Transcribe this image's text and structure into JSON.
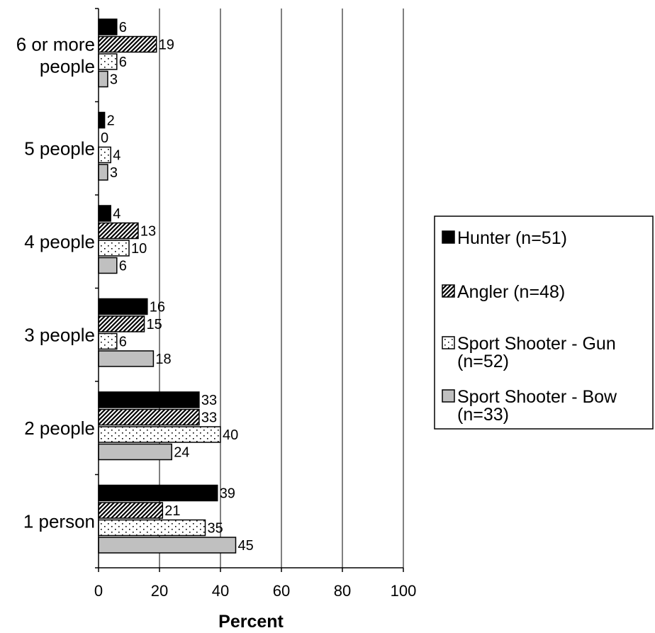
{
  "chart_data": {
    "type": "bar",
    "orientation": "horizontal",
    "title": "",
    "xlabel": "Percent",
    "ylabel": "",
    "xlim": [
      0,
      100
    ],
    "xticks": [
      "0",
      "20",
      "40",
      "60",
      "80",
      "100"
    ],
    "grid": "vertical major gridlines",
    "legend_position": "right",
    "categories": [
      [
        "6 or more",
        "people"
      ],
      [
        "5 people"
      ],
      [
        "4 people"
      ],
      [
        "3 people"
      ],
      [
        "2 people"
      ],
      [
        "1 person"
      ]
    ],
    "series": [
      {
        "name": "Hunter (n=51)",
        "legend_lines": [
          "Hunter (n=51)"
        ],
        "pattern": "solid-black",
        "values": [
          6,
          2,
          4,
          16,
          33,
          39
        ]
      },
      {
        "name": "Angler (n=48)",
        "legend_lines": [
          "Angler (n=48)"
        ],
        "pattern": "diagonal-hatch",
        "values": [
          19,
          0,
          13,
          15,
          33,
          21
        ]
      },
      {
        "name": "Sport Shooter - Gun (n=52)",
        "legend_lines": [
          "Sport Shooter - Gun",
          "(n=52)"
        ],
        "pattern": "dotted-white",
        "values": [
          6,
          4,
          10,
          6,
          40,
          35
        ]
      },
      {
        "name": "Sport Shooter - Bow (n=33)",
        "legend_lines": [
          "Sport Shooter - Bow",
          "(n=33)"
        ],
        "pattern": "solid-gray",
        "values": [
          3,
          3,
          6,
          18,
          24,
          45
        ]
      }
    ],
    "colors": {
      "hunter": "#000000",
      "angler_bg": "#ffffff",
      "gun_bg": "#ffffff",
      "bow": "#c0c0c0",
      "grid": "#000000"
    }
  }
}
